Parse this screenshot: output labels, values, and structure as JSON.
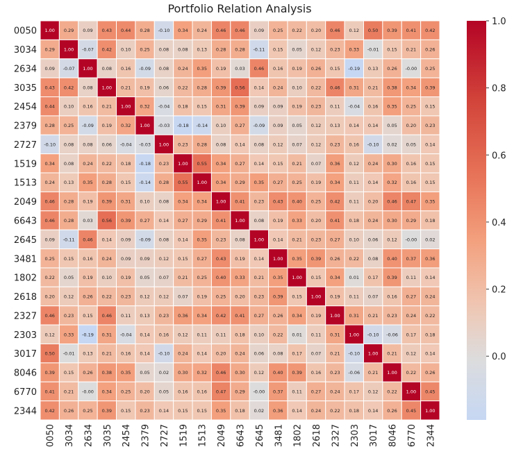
{
  "chart_data": {
    "type": "heatmap",
    "title": "Portfolio Relation Analysis",
    "labels": [
      "0050",
      "3034",
      "2634",
      "3035",
      "2454",
      "2379",
      "2727",
      "1519",
      "1513",
      "2049",
      "6643",
      "2645",
      "3481",
      "1802",
      "2618",
      "2327",
      "2303",
      "3017",
      "8046",
      "6770",
      "2344"
    ],
    "matrix": [
      [
        1.0,
        0.29,
        0.09,
        0.43,
        0.44,
        0.28,
        -0.1,
        0.34,
        0.24,
        0.46,
        0.46,
        0.09,
        0.25,
        0.22,
        0.2,
        0.46,
        0.12,
        0.5,
        0.39,
        0.41,
        0.42
      ],
      [
        0.29,
        1.0,
        -0.07,
        0.42,
        0.1,
        0.25,
        0.08,
        0.08,
        0.13,
        0.28,
        0.28,
        -0.11,
        0.15,
        0.05,
        0.12,
        0.23,
        0.33,
        -0.01,
        0.15,
        0.21,
        0.26
      ],
      [
        0.09,
        -0.07,
        1.0,
        0.08,
        0.16,
        -0.09,
        0.08,
        0.24,
        0.35,
        0.19,
        0.03,
        0.46,
        0.16,
        0.19,
        0.26,
        0.15,
        -0.19,
        0.13,
        0.26,
        -0.0,
        0.25
      ],
      [
        0.43,
        0.42,
        0.08,
        1.0,
        0.21,
        0.19,
        0.06,
        0.22,
        0.28,
        0.39,
        0.56,
        0.14,
        0.24,
        0.1,
        0.22,
        0.46,
        0.31,
        0.21,
        0.38,
        0.34,
        0.39
      ],
      [
        0.44,
        0.1,
        0.16,
        0.21,
        1.0,
        0.32,
        -0.04,
        0.18,
        0.15,
        0.31,
        0.39,
        0.09,
        0.09,
        0.19,
        0.23,
        0.11,
        -0.04,
        0.16,
        0.35,
        0.25,
        0.15
      ],
      [
        0.28,
        0.25,
        -0.09,
        0.19,
        0.32,
        1.0,
        -0.03,
        -0.18,
        -0.14,
        0.1,
        0.27,
        -0.09,
        0.09,
        0.05,
        0.12,
        0.13,
        0.14,
        0.14,
        0.05,
        0.2,
        0.23
      ],
      [
        -0.1,
        0.08,
        0.08,
        0.06,
        -0.04,
        -0.03,
        1.0,
        0.23,
        0.28,
        0.08,
        0.14,
        0.08,
        0.12,
        0.07,
        0.12,
        0.23,
        0.16,
        -0.1,
        0.02,
        0.05,
        0.14
      ],
      [
        0.34,
        0.08,
        0.24,
        0.22,
        0.18,
        -0.18,
        0.23,
        1.0,
        0.55,
        0.34,
        0.27,
        0.14,
        0.15,
        0.21,
        0.07,
        0.36,
        0.12,
        0.24,
        0.3,
        0.16,
        0.15
      ],
      [
        0.24,
        0.13,
        0.35,
        0.28,
        0.15,
        -0.14,
        0.28,
        0.55,
        1.0,
        0.34,
        0.29,
        0.35,
        0.27,
        0.25,
        0.19,
        0.34,
        0.11,
        0.14,
        0.32,
        0.16,
        0.15
      ],
      [
        0.46,
        0.28,
        0.19,
        0.39,
        0.31,
        0.1,
        0.08,
        0.34,
        0.34,
        1.0,
        0.41,
        0.23,
        0.43,
        0.4,
        0.25,
        0.42,
        0.11,
        0.2,
        0.46,
        0.47,
        0.35
      ],
      [
        0.46,
        0.28,
        0.03,
        0.56,
        0.39,
        0.27,
        0.14,
        0.27,
        0.29,
        0.41,
        1.0,
        0.08,
        0.19,
        0.33,
        0.2,
        0.41,
        0.18,
        0.24,
        0.3,
        0.29,
        0.18
      ],
      [
        0.09,
        -0.11,
        0.46,
        0.14,
        0.09,
        -0.09,
        0.08,
        0.14,
        0.35,
        0.23,
        0.08,
        1.0,
        0.14,
        0.21,
        0.23,
        0.27,
        0.1,
        0.06,
        0.12,
        -0.0,
        0.02
      ],
      [
        0.25,
        0.15,
        0.16,
        0.24,
        0.09,
        0.09,
        0.12,
        0.15,
        0.27,
        0.43,
        0.19,
        0.14,
        1.0,
        0.35,
        0.39,
        0.26,
        0.22,
        0.08,
        0.4,
        0.37,
        0.36
      ],
      [
        0.22,
        0.05,
        0.19,
        0.1,
        0.19,
        0.05,
        0.07,
        0.21,
        0.25,
        0.4,
        0.33,
        0.21,
        0.35,
        1.0,
        0.15,
        0.34,
        0.01,
        0.17,
        0.39,
        0.11,
        0.14
      ],
      [
        0.2,
        0.12,
        0.26,
        0.22,
        0.23,
        0.12,
        0.12,
        0.07,
        0.19,
        0.25,
        0.2,
        0.23,
        0.39,
        0.15,
        1.0,
        0.19,
        0.11,
        0.07,
        0.16,
        0.27,
        0.24
      ],
      [
        0.46,
        0.23,
        0.15,
        0.46,
        0.11,
        0.13,
        0.23,
        0.36,
        0.34,
        0.42,
        0.41,
        0.27,
        0.26,
        0.34,
        0.19,
        1.0,
        0.31,
        0.21,
        0.23,
        0.24,
        0.22
      ],
      [
        0.12,
        0.33,
        -0.19,
        0.31,
        -0.04,
        0.14,
        0.16,
        0.12,
        0.11,
        0.11,
        0.18,
        0.1,
        0.22,
        0.01,
        0.11,
        0.31,
        1.0,
        -0.1,
        -0.06,
        0.17,
        0.18
      ],
      [
        0.5,
        -0.01,
        0.13,
        0.21,
        0.16,
        0.14,
        -0.1,
        0.24,
        0.14,
        0.2,
        0.24,
        0.06,
        0.08,
        0.17,
        0.07,
        0.21,
        -0.1,
        1.0,
        0.21,
        0.12,
        0.14
      ],
      [
        0.39,
        0.15,
        0.26,
        0.38,
        0.35,
        0.05,
        0.02,
        0.3,
        0.32,
        0.46,
        0.3,
        0.12,
        0.4,
        0.39,
        0.16,
        0.23,
        -0.06,
        0.21,
        1.0,
        0.22,
        0.26
      ],
      [
        0.41,
        0.21,
        -0.0,
        0.34,
        0.25,
        0.2,
        0.05,
        0.16,
        0.16,
        0.47,
        0.29,
        -0.0,
        0.37,
        0.11,
        0.27,
        0.24,
        0.17,
        0.12,
        0.22,
        1.0,
        0.45
      ],
      [
        0.42,
        0.26,
        0.25,
        0.39,
        0.15,
        0.23,
        0.14,
        0.15,
        0.15,
        0.35,
        0.18,
        0.02,
        0.36,
        0.14,
        0.24,
        0.22,
        0.18,
        0.14,
        0.26,
        0.45,
        1.0
      ]
    ],
    "value_range": [
      -0.19,
      1.0
    ],
    "colormap": "coolwarm",
    "colorbar_ticks": [
      1.0,
      0.8,
      0.6,
      0.4,
      0.2,
      0.0
    ],
    "annotate": true,
    "value_format": "2 decimals"
  },
  "colors": {
    "cold": "#c6d7f3",
    "neutral": "#dddcdc",
    "warm": "#b40426",
    "grid_line": "#ffffff",
    "text_dark": "#222222",
    "text_light": "#ffffff"
  }
}
